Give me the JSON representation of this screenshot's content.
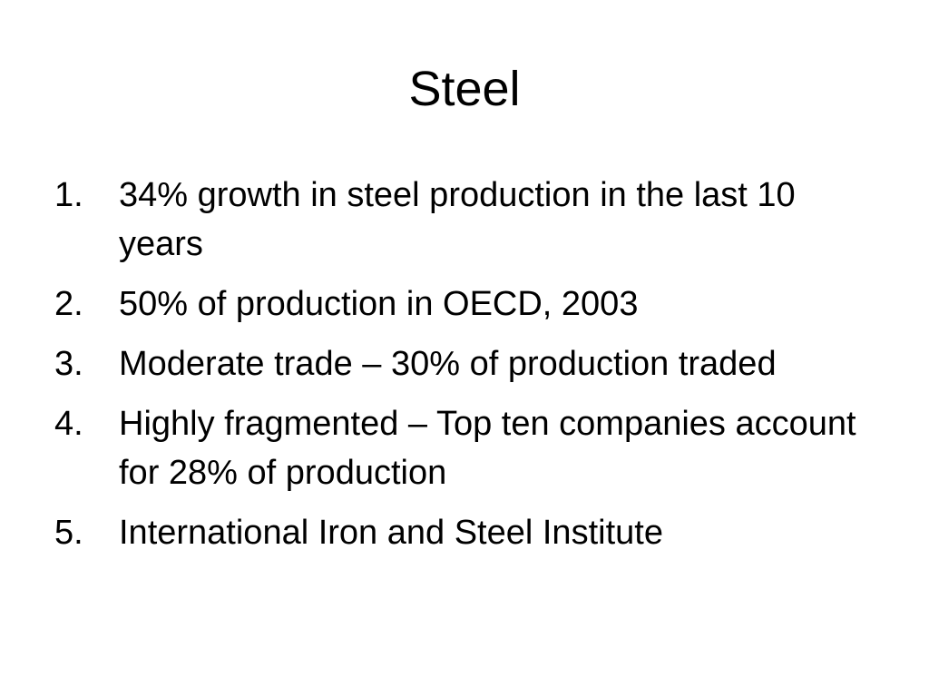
{
  "slide": {
    "title": "Steel",
    "items": [
      {
        "number": "1.",
        "text": "34% growth in steel production in the last 10 years"
      },
      {
        "number": "2.",
        "text": "50% of production in OECD, 2003"
      },
      {
        "number": "3.",
        "text": "Moderate trade – 30% of production traded"
      },
      {
        "number": "4.",
        "text": "Highly fragmented – Top ten companies account for 28% of production"
      },
      {
        "number": "5.",
        "text": "International Iron and Steel Institute"
      }
    ]
  }
}
